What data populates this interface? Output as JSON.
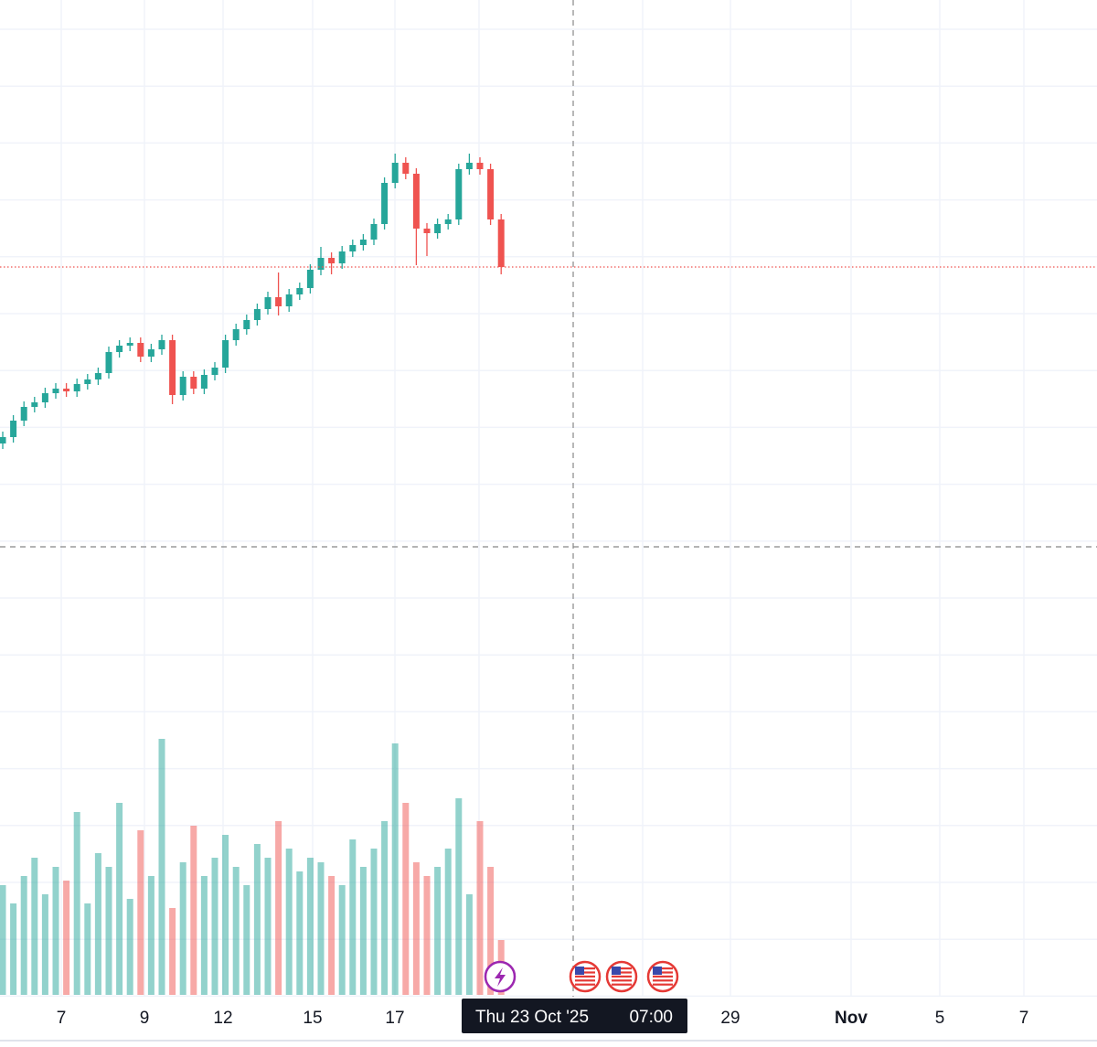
{
  "chart_data": {
    "type": "candlestick",
    "open": [
      605,
      612,
      630,
      645,
      650,
      660,
      665,
      662,
      670,
      675,
      682,
      705,
      712,
      715,
      700,
      708,
      718,
      658,
      678,
      665,
      680,
      688,
      718,
      730,
      740,
      752,
      765,
      755,
      768,
      775,
      795,
      808,
      802,
      815,
      822,
      828,
      845,
      890,
      912,
      900,
      840,
      835,
      845,
      850,
      905,
      912,
      905,
      850
    ],
    "high": [
      618,
      636,
      651,
      656,
      666,
      671,
      671,
      676,
      681,
      688,
      711,
      718,
      721,
      721,
      714,
      724,
      724,
      684,
      684,
      686,
      694,
      724,
      736,
      746,
      758,
      771,
      792,
      774,
      781,
      801,
      820,
      814,
      821,
      828,
      834,
      851,
      896,
      922,
      918,
      906,
      846,
      851,
      856,
      911,
      922,
      918,
      911,
      856
    ],
    "low": [
      599,
      606,
      624,
      639,
      644,
      654,
      656,
      656,
      664,
      669,
      676,
      699,
      706,
      694,
      694,
      702,
      648,
      652,
      659,
      659,
      674,
      682,
      712,
      724,
      734,
      746,
      745,
      749,
      762,
      769,
      789,
      790,
      796,
      809,
      816,
      822,
      839,
      884,
      894,
      800,
      810,
      829,
      839,
      844,
      899,
      899,
      844,
      790
    ],
    "close": [
      612,
      630,
      645,
      650,
      660,
      665,
      662,
      670,
      675,
      682,
      705,
      712,
      715,
      700,
      708,
      718,
      658,
      678,
      665,
      680,
      688,
      718,
      730,
      740,
      752,
      765,
      755,
      768,
      775,
      795,
      808,
      802,
      815,
      822,
      828,
      845,
      890,
      912,
      900,
      840,
      835,
      845,
      850,
      905,
      912,
      905,
      850,
      798
    ],
    "volume": [
      120,
      100,
      130,
      150,
      110,
      140,
      125,
      200,
      100,
      155,
      140,
      210,
      105,
      180,
      130,
      280,
      95,
      145,
      185,
      130,
      150,
      175,
      140,
      120,
      165,
      150,
      190,
      160,
      135,
      150,
      145,
      130,
      120,
      170,
      140,
      160,
      190,
      275,
      210,
      145,
      130,
      140,
      160,
      215,
      110,
      190,
      140,
      60
    ],
    "ylim": [
      0,
      1090
    ],
    "volume_ylim": [
      0,
      300
    ],
    "up_color": "#26a69a",
    "down_color": "#ef5350",
    "last_price_line": true,
    "x_axis_labels": [
      "7",
      "9",
      "12",
      "15",
      "17",
      "29",
      "Nov",
      "5",
      "7"
    ],
    "crosshair_date": "Thu 23 Oct '25",
    "crosshair_time": "07:00"
  }
}
